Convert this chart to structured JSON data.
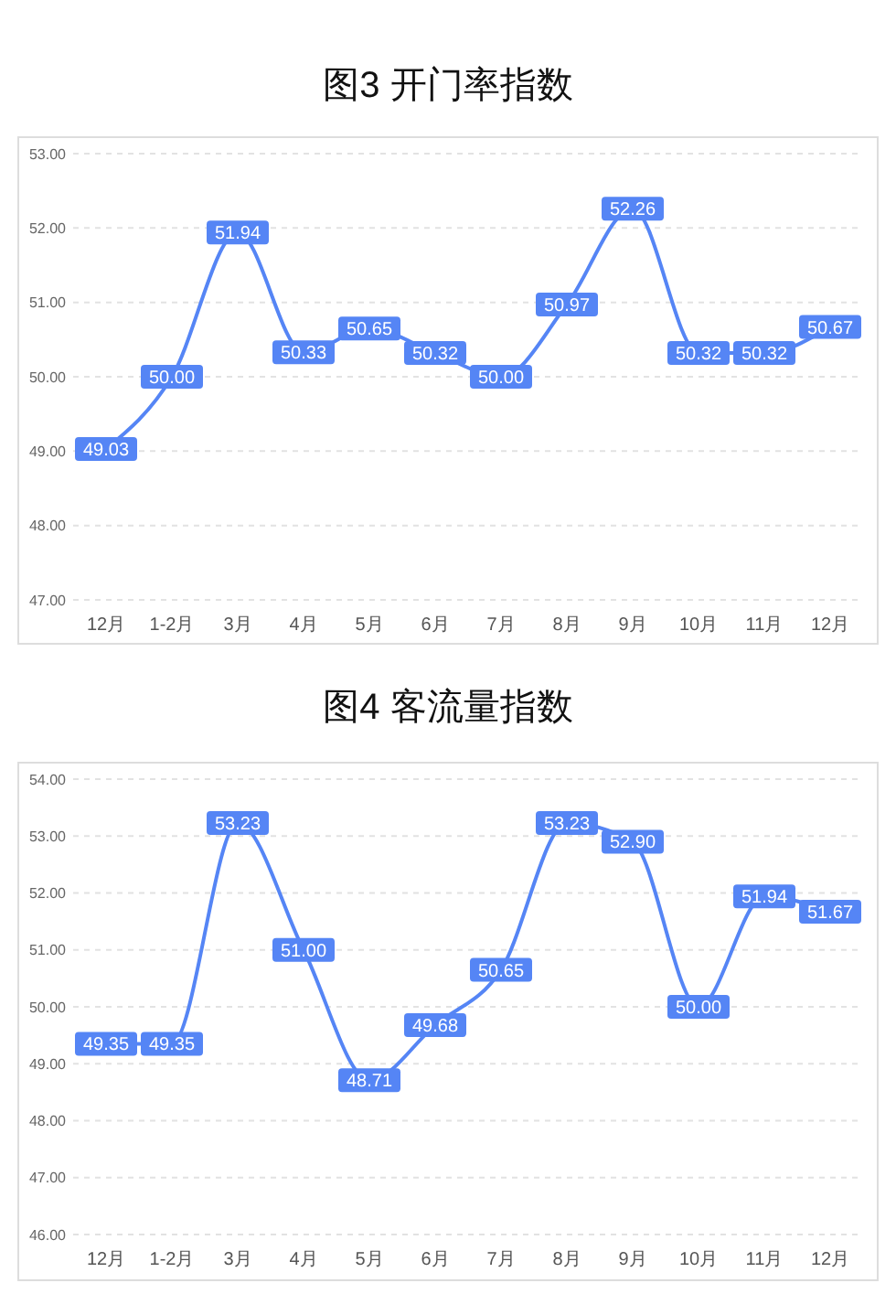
{
  "chart_data": [
    {
      "type": "line",
      "title": "图3 开门率指数",
      "categories": [
        "12月",
        "1-2月",
        "3月",
        "4月",
        "5月",
        "6月",
        "7月",
        "8月",
        "9月",
        "10月",
        "11月",
        "12月"
      ],
      "series": [
        {
          "color": "#5585f5",
          "values": [
            49.03,
            50.0,
            51.94,
            50.33,
            50.65,
            50.32,
            50.0,
            50.97,
            52.26,
            50.32,
            50.32,
            50.67
          ],
          "value_labels": [
            "49.03",
            "50.00",
            "51.94",
            "50.33",
            "50.65",
            "50.32",
            "50.00",
            "50.97",
            "52.26",
            "50.32",
            "50.32",
            "50.67"
          ]
        }
      ],
      "ylim": [
        47,
        53
      ],
      "yticks": [
        {
          "value": 47,
          "label": "47.00"
        },
        {
          "value": 48,
          "label": "48.00"
        },
        {
          "value": 49,
          "label": "49.00"
        },
        {
          "value": 50,
          "label": "50.00"
        },
        {
          "value": 51,
          "label": "51.00"
        },
        {
          "value": 52,
          "label": "52.00"
        },
        {
          "value": 53,
          "label": "53.00"
        }
      ],
      "grid": "y",
      "marker": "square"
    },
    {
      "type": "line",
      "title": "图4 客流量指数",
      "categories": [
        "12月",
        "1-2月",
        "3月",
        "4月",
        "5月",
        "6月",
        "7月",
        "8月",
        "9月",
        "10月",
        "11月",
        "12月"
      ],
      "series": [
        {
          "color": "#5585f5",
          "values": [
            49.35,
            49.35,
            53.23,
            51.0,
            48.71,
            49.68,
            50.65,
            53.23,
            52.9,
            50.0,
            51.94,
            51.67
          ],
          "value_labels": [
            "49.35",
            "49.35",
            "53.23",
            "51.00",
            "48.71",
            "49.68",
            "50.65",
            "53.23",
            "52.90",
            "50.00",
            "51.94",
            "51.67"
          ]
        }
      ],
      "ylim": [
        46,
        54
      ],
      "yticks": [
        {
          "value": 46,
          "label": "46.00"
        },
        {
          "value": 47,
          "label": "47.00"
        },
        {
          "value": 48,
          "label": "48.00"
        },
        {
          "value": 49,
          "label": "49.00"
        },
        {
          "value": 50,
          "label": "50.00"
        },
        {
          "value": 51,
          "label": "51.00"
        },
        {
          "value": 52,
          "label": "52.00"
        },
        {
          "value": 53,
          "label": "53.00"
        },
        {
          "value": 54,
          "label": "54.00"
        }
      ],
      "grid": "y",
      "marker": "square"
    }
  ]
}
